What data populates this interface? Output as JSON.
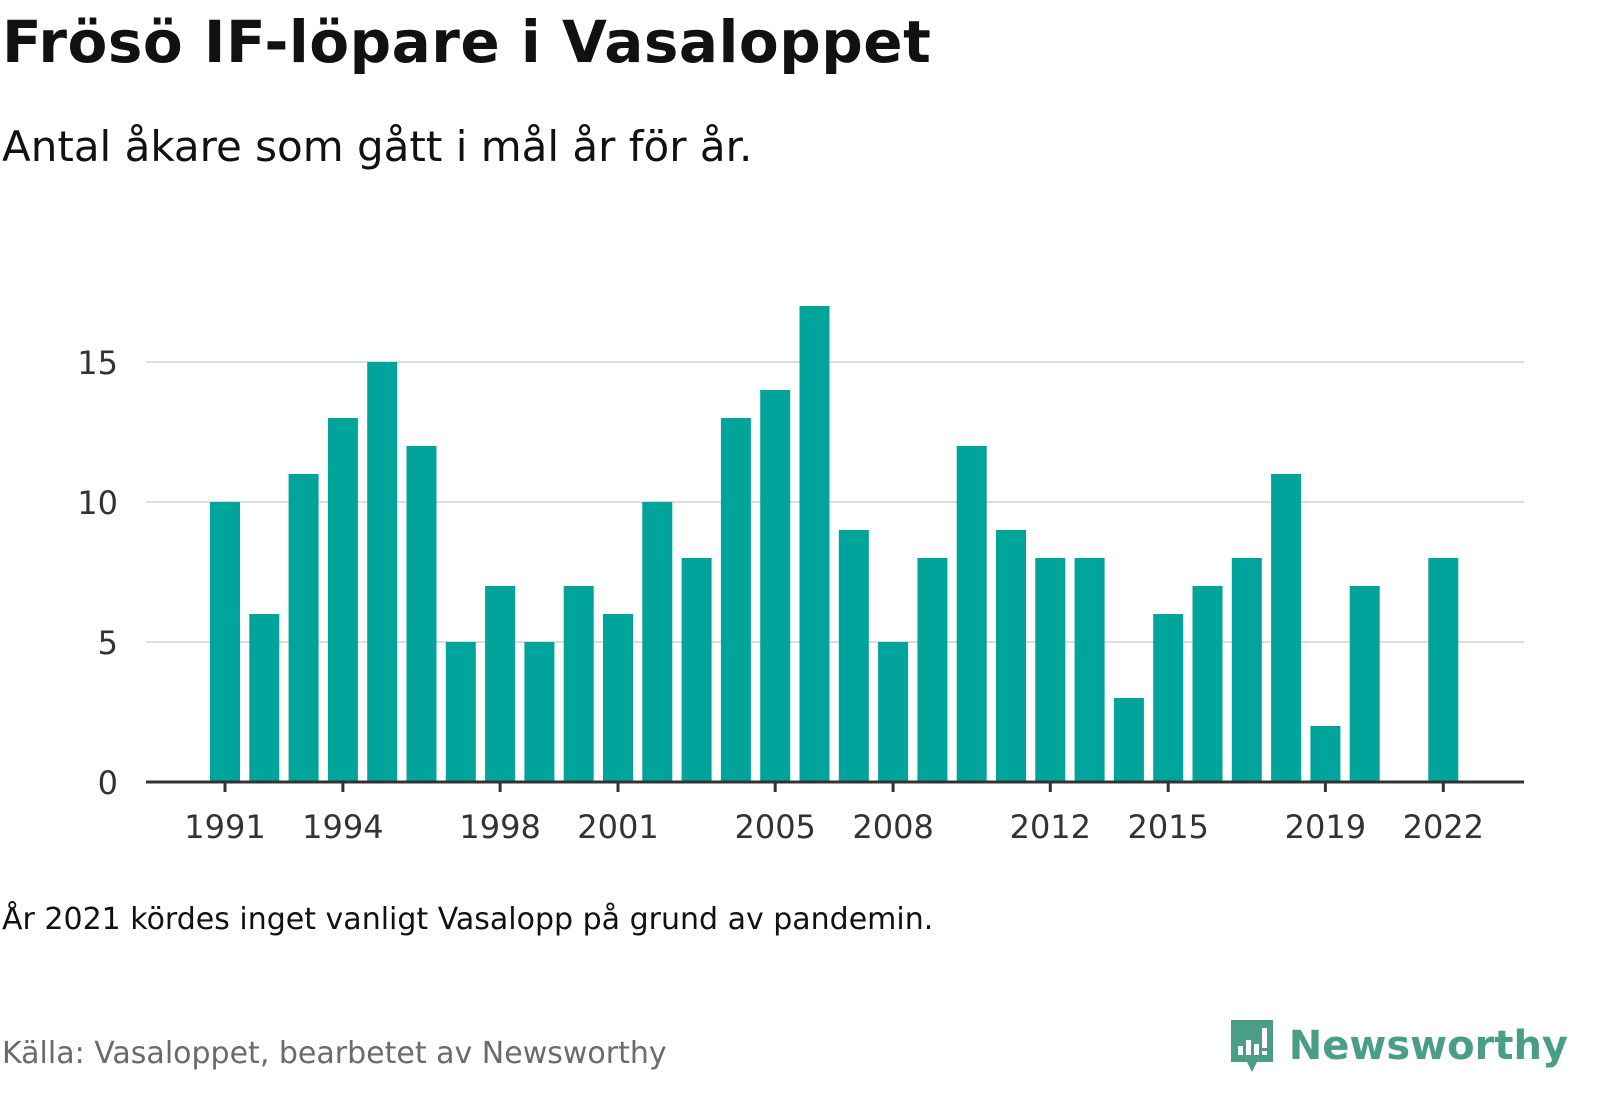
{
  "title": "Frösö IF-löpare i Vasaloppet",
  "subtitle": "Antal åkare som gått i mål år för år.",
  "note": "År 2021 kördes inget vanligt Vasalopp på grund av pandemin.",
  "source": "Källa: Vasaloppet, bearbetet av Newsworthy",
  "brand": {
    "name": "Newsworthy",
    "icon": "newsworthy-chart-logo-icon"
  },
  "colors": {
    "bar": "#00a49a",
    "grid": "#dddddd",
    "axis": "#333333",
    "brand": "#4a9e88"
  },
  "chart_data": {
    "type": "bar",
    "title": "Frösö IF-löpare i Vasaloppet",
    "subtitle": "Antal åkare som gått i mål år för år.",
    "xlabel": "",
    "ylabel": "",
    "ylim": [
      0,
      17.5
    ],
    "yticks": [
      0,
      5,
      10,
      15
    ],
    "xtick_labels": [
      "1991",
      "1994",
      "1998",
      "2001",
      "2005",
      "2008",
      "2012",
      "2015",
      "2019",
      "2022"
    ],
    "grid": "horizontal",
    "categories": [
      "1991",
      "1992",
      "1993",
      "1994",
      "1995",
      "1996",
      "1997",
      "1998",
      "1999",
      "2000",
      "2001",
      "2002",
      "2003",
      "2004",
      "2005",
      "2006",
      "2007",
      "2008",
      "2009",
      "2010",
      "2011",
      "2012",
      "2013",
      "2014",
      "2015",
      "2016",
      "2017",
      "2018",
      "2019",
      "2020",
      "2021",
      "2022"
    ],
    "values": [
      10,
      6,
      11,
      13,
      15,
      12,
      5,
      7,
      5,
      7,
      6,
      10,
      8,
      13,
      14,
      17,
      9,
      5,
      8,
      12,
      9,
      8,
      8,
      3,
      6,
      7,
      8,
      11,
      2,
      7,
      null,
      8
    ]
  }
}
